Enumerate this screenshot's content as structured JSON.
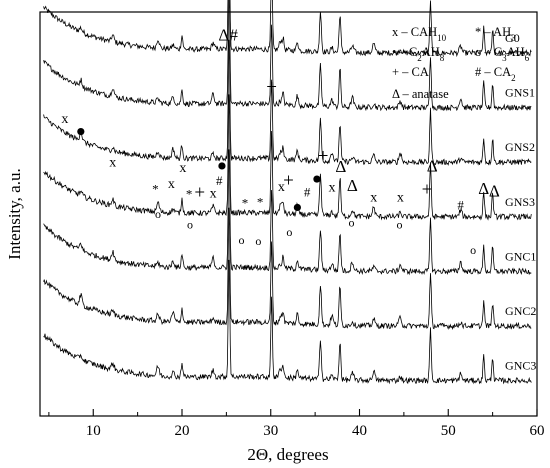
{
  "chart_data": {
    "type": "line",
    "xlabel": "2Θ, degrees",
    "ylabel": "Intensity, a.u.",
    "xlim": [
      4,
      60
    ],
    "xticks": [
      10,
      20,
      30,
      40,
      50,
      60
    ],
    "yticks_shown": false,
    "grid": false,
    "legend_position": "top-right",
    "legend": [
      {
        "symbol": "x",
        "text": "x – CAH",
        "sub": "10"
      },
      {
        "symbol": "*",
        "text": "* – AH",
        "sub": "3"
      },
      {
        "symbol": "•",
        "text": "• – C",
        "sub_parts": [
          "2",
          "AH",
          "8"
        ]
      },
      {
        "symbol": "o",
        "text": "o – C",
        "sub_parts": [
          "3",
          "AH",
          "6"
        ]
      },
      {
        "symbol": "+",
        "text": "+ – CA"
      },
      {
        "symbol": "#",
        "text": "# – CA",
        "sub": "2"
      },
      {
        "symbol": "Δ",
        "text": "Δ – anatase"
      }
    ],
    "series": [
      {
        "name": "G0",
        "offset": 7
      },
      {
        "name": "GNS1",
        "offset": 6
      },
      {
        "name": "GNS2",
        "offset": 5
      },
      {
        "name": "GNS3",
        "offset": 4
      },
      {
        "name": "GNC1",
        "offset": 3
      },
      {
        "name": "GNC2",
        "offset": 2
      },
      {
        "name": "GNC3",
        "offset": 1
      }
    ],
    "common_peaks": [
      {
        "x": 25.3,
        "h": 2.2,
        "w": 0.12
      },
      {
        "x": 30.1,
        "h": 1.5,
        "w": 0.12
      },
      {
        "x": 35.6,
        "h": 0.75,
        "w": 0.14
      },
      {
        "x": 37.8,
        "h": 0.7,
        "w": 0.14
      },
      {
        "x": 48.0,
        "h": 0.95,
        "w": 0.13
      },
      {
        "x": 54.0,
        "h": 0.45,
        "w": 0.12
      },
      {
        "x": 55.0,
        "h": 0.45,
        "w": 0.12
      },
      {
        "x": 20.0,
        "h": 0.25,
        "w": 0.14
      },
      {
        "x": 31.4,
        "h": 0.2,
        "w": 0.14
      },
      {
        "x": 33.0,
        "h": 0.18,
        "w": 0.14
      }
    ],
    "annotations": [
      {
        "text": "x",
        "x": 6.8,
        "y": 5.37
      },
      {
        "text": "•",
        "x": 8.6,
        "y": 5.21
      },
      {
        "text": "x",
        "x": 12.2,
        "y": 4.57
      },
      {
        "text": "*",
        "x": 17.0,
        "y": 4.08
      },
      {
        "text": "x",
        "x": 18.8,
        "y": 4.18
      },
      {
        "text": "x",
        "x": 20.1,
        "y": 4.47
      },
      {
        "text": "*",
        "x": 20.8,
        "y": 3.98
      },
      {
        "text": "+",
        "x": 22.0,
        "y": 3.98
      },
      {
        "text": "x",
        "x": 23.5,
        "y": 4.0
      },
      {
        "text": "#",
        "x": 24.2,
        "y": 4.23
      },
      {
        "text": "•",
        "x": 24.5,
        "y": 4.58
      },
      {
        "text": "Δ#",
        "x": 25.2,
        "y": 6.88
      },
      {
        "text": "*",
        "x": 27.1,
        "y": 3.82
      },
      {
        "text": "*",
        "x": 28.8,
        "y": 3.84
      },
      {
        "text": "+",
        "x": 30.1,
        "y": 5.92
      },
      {
        "text": "x",
        "x": 31.2,
        "y": 4.12
      },
      {
        "text": "+",
        "x": 32.0,
        "y": 4.2
      },
      {
        "text": "#",
        "x": 34.1,
        "y": 4.02
      },
      {
        "text": "•",
        "x": 33.0,
        "y": 3.82
      },
      {
        "text": "•",
        "x": 35.2,
        "y": 4.34
      },
      {
        "text": "+",
        "x": 35.9,
        "y": 4.65
      },
      {
        "text": "x",
        "x": 36.9,
        "y": 4.11
      },
      {
        "text": "Δ",
        "x": 37.9,
        "y": 4.47
      },
      {
        "text": "Δ",
        "x": 39.2,
        "y": 4.12
      },
      {
        "text": "x",
        "x": 41.6,
        "y": 3.93
      },
      {
        "text": "x",
        "x": 44.6,
        "y": 3.93
      },
      {
        "text": "+",
        "x": 47.6,
        "y": 4.04
      },
      {
        "text": "Δ",
        "x": 48.2,
        "y": 4.48
      },
      {
        "text": "#",
        "x": 51.4,
        "y": 3.78
      },
      {
        "text": "Δ",
        "x": 54.0,
        "y": 4.07
      },
      {
        "text": "Δ",
        "x": 55.2,
        "y": 4.02
      },
      {
        "text": "o",
        "x": 17.3,
        "y": 3.63
      },
      {
        "text": "o",
        "x": 20.9,
        "y": 3.43
      },
      {
        "text": "o",
        "x": 26.7,
        "y": 3.15
      },
      {
        "text": "o",
        "x": 28.6,
        "y": 3.13
      },
      {
        "text": "o",
        "x": 32.1,
        "y": 3.3
      },
      {
        "text": "o",
        "x": 39.1,
        "y": 3.47
      },
      {
        "text": "o",
        "x": 44.5,
        "y": 3.43
      },
      {
        "text": "o",
        "x": 52.8,
        "y": 2.97
      }
    ]
  }
}
